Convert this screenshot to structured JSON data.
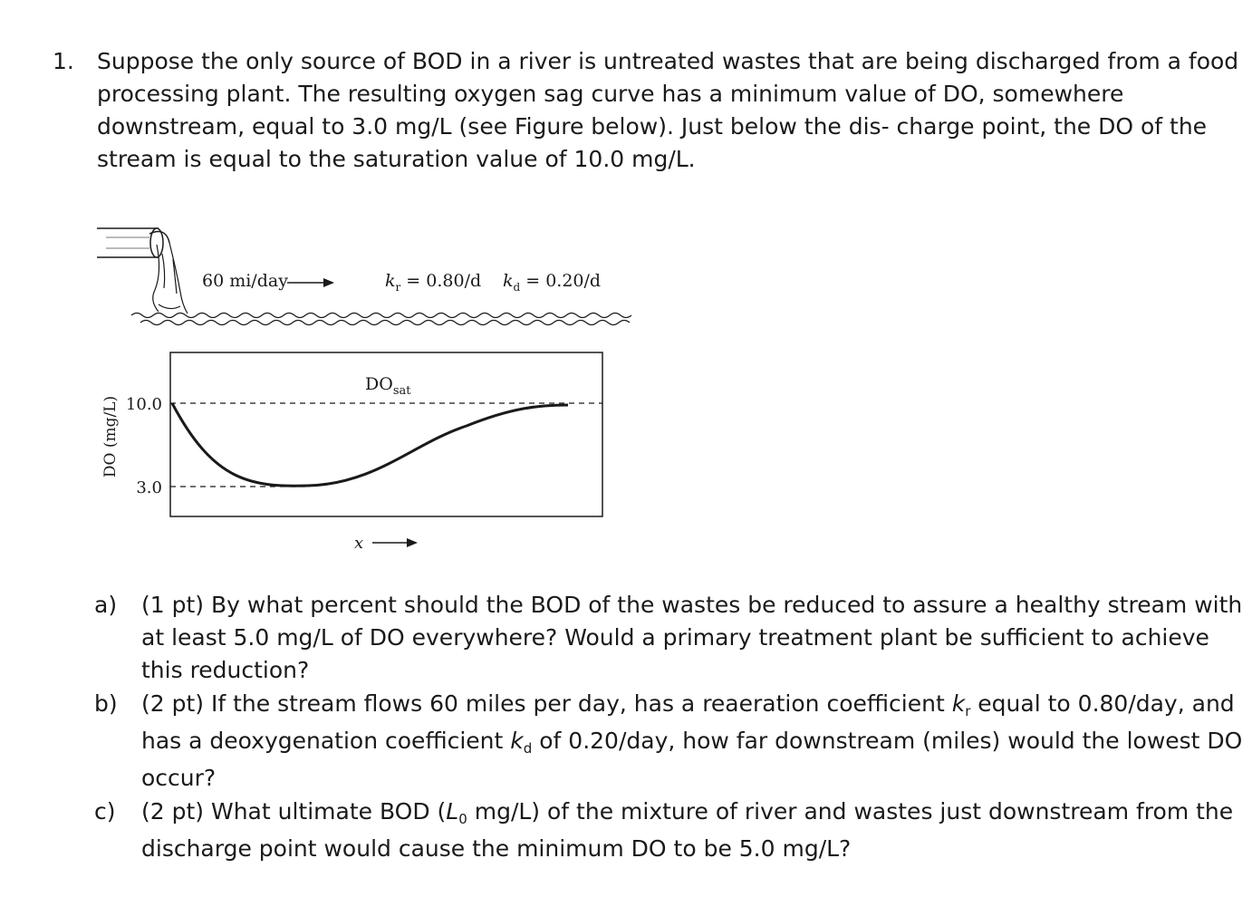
{
  "question": {
    "number": "1.",
    "lines": [
      "Suppose the only source of BOD in a river is untreated wastes that are being discharged from a food",
      "processing plant. The resulting oxygen sag curve has a minimum value of DO, somewhere",
      "downstream, equal to 3.0 mg/L (see Figure below). Just below the dis- charge point, the DO of the",
      "stream is equal to the saturation value of 10.0 mg/L."
    ]
  },
  "figure": {
    "flow_label": "60 mi/day",
    "kr_sym": "k",
    "kr_sub": "r",
    "kr_val": " = 0.80/d",
    "kd_sym": "k",
    "kd_sub": "d",
    "kd_val": " = 0.20/d",
    "dosat_main": "DO",
    "dosat_sub": "sat",
    "y_axis_label": "DO (mg/L)",
    "y_tick_high": "10.0",
    "y_tick_low": "3.0",
    "x_axis_label": "x"
  },
  "parts": {
    "a": {
      "label": "a)",
      "lines": [
        "(1 pt) By what percent should the BOD of the wastes be reduced to assure a healthy stream with",
        "at least 5.0 mg/L of DO everywhere? Would a primary treatment plant be sufficient to achieve",
        "this reduction?"
      ]
    },
    "b": {
      "label": "b)",
      "l1_pre": "(2 pt) If the stream flows 60 miles per day, has a reaeration coefficient ",
      "l1_sym": "k",
      "l1_sub": "r",
      "l1_post": " equal to 0.80/day, and",
      "l2_pre": "has a deoxygenation coefficient ",
      "l2_sym": "k",
      "l2_sub": "d",
      "l2_post": " of 0.20/day, how far downstream (miles) would the lowest DO",
      "l3": "occur?"
    },
    "c": {
      "label": "c)",
      "l1_pre": "(2 pt) What ultimate BOD (",
      "l1_sym": "L",
      "l1_sub": "0",
      "l1_post": " mg/L) of the mixture of river and wastes just downstream from the",
      "l2": "discharge point would cause the minimum DO to be 5.0 mg/L?"
    }
  }
}
